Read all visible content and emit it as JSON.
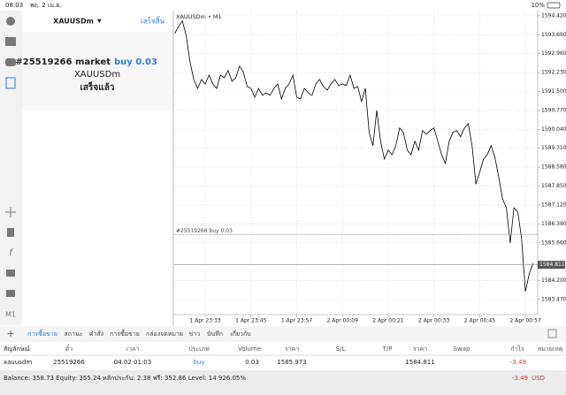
{
  "status_bar": {
    "time": "08:03",
    "date": "พฤ. 2 เม.ย.",
    "battery": "10%"
  },
  "order_panel": {
    "symbol": "XAUUSDm",
    "done_button": "เสร็จสิ้น",
    "order_title": "#25519266 market",
    "order_detail": "buy 0.03",
    "order_symbol": "XAUUSDm",
    "status": "เสร็จแล้ว"
  },
  "sidebar": {
    "timeframe": "M1"
  },
  "chart_data": {
    "type": "line",
    "title": "XAUUSDm • M1",
    "color": "#000000",
    "grid": true,
    "categories": [
      null,
      null,
      null,
      null,
      null,
      null,
      null,
      null,
      "1 Apr 23:33",
      null,
      null,
      null,
      null,
      null,
      null,
      null,
      null,
      null,
      null,
      null,
      "1 Apr 23:45",
      null,
      null,
      null,
      null,
      null,
      null,
      null,
      null,
      null,
      null,
      null,
      "1 Apr 23:57",
      null,
      null,
      null,
      null,
      null,
      null,
      null,
      null,
      null,
      null,
      null,
      "2 Apr 00:09",
      null,
      null,
      null,
      null,
      null,
      null,
      null,
      null,
      null,
      null,
      null,
      "2 Apr 00:21",
      null,
      null,
      null,
      null,
      null,
      null,
      null,
      null,
      null,
      null,
      null,
      "2 Apr 00:33",
      null,
      null,
      null,
      null,
      null,
      null,
      null,
      null,
      null,
      null,
      null,
      "2 Apr 00:45",
      null,
      null,
      null,
      null,
      null,
      null,
      null,
      null,
      null,
      null,
      null,
      "2 Apr 00:57",
      null,
      null
    ],
    "values": [
      1593.74,
      1594.01,
      1594.22,
      1593.67,
      1592.65,
      1591.96,
      1591.62,
      1591.96,
      1591.79,
      1592.13,
      1591.79,
      1591.62,
      1592.13,
      1592.03,
      1592.31,
      1591.9,
      1592.03,
      1592.48,
      1592.24,
      1591.69,
      1591.62,
      1591.28,
      1591.62,
      1591.35,
      1591.45,
      1591.35,
      1591.62,
      1591.79,
      1591.21,
      1591.62,
      1591.79,
      1592.13,
      1591.28,
      1591.21,
      1591.62,
      1591.45,
      1591.35,
      1591.79,
      1591.96,
      1591.69,
      1591.55,
      1591.79,
      1591.96,
      1591.73,
      1591.79,
      1591.73,
      1592.13,
      1591.62,
      1591.69,
      1591.11,
      1591.62,
      1589.92,
      1589.41,
      1590.77,
      1589.58,
      1588.89,
      1589.24,
      1589.06,
      1589.41,
      1590.09,
      1589.92,
      1589.24,
      1589.06,
      1589.58,
      1589.24,
      1589.99,
      1589.85,
      1589.99,
      1590.09,
      1589.58,
      1589.06,
      1588.72,
      1589.58,
      1589.92,
      1589.99,
      1589.75,
      1590.09,
      1590.26,
      1589.41,
      1587.93,
      1588.38,
      1588.89,
      1589.06,
      1589.41,
      1588.96,
      1588.21,
      1587.35,
      1587.01,
      1585.65,
      1587.01,
      1586.85,
      1585.82,
      1583.78,
      1584.46,
      1584.87
    ],
    "ylim": [
      1582.89,
      1594.62
    ],
    "yticks": [
      {
        "value": 1594.42,
        "label": "1594.420"
      },
      {
        "value": 1593.69,
        "label": "1593.690"
      },
      {
        "value": 1592.96,
        "label": "1592.960"
      },
      {
        "value": 1592.23,
        "label": "1592.230"
      },
      {
        "value": 1591.5,
        "label": "1591.500"
      },
      {
        "value": 1590.77,
        "label": "1590.770"
      },
      {
        "value": 1590.04,
        "label": "1590.040"
      },
      {
        "value": 1589.31,
        "label": "1589.310"
      },
      {
        "value": 1588.58,
        "label": "1588.580"
      },
      {
        "value": 1587.85,
        "label": "1587.850"
      },
      {
        "value": 1587.12,
        "label": "1587.120"
      },
      {
        "value": 1586.39,
        "label": "1586.390"
      },
      {
        "value": 1585.66,
        "label": "1585.660"
      },
      {
        "value": 1584.2,
        "label": "1584.200"
      },
      {
        "value": 1583.47,
        "label": "1583.470"
      }
    ],
    "order_line": {
      "value": 1585.973,
      "label": "#25519266 buy 0.03"
    },
    "bid_line": {
      "value": 1584.811,
      "label": "1584.811"
    }
  },
  "tabs": [
    "การซื้อขาย",
    "สถานะ",
    "คำสั่ง",
    "การซื้อขาย",
    "กล่องจดหมาย",
    "ข่าว",
    "บันทึก",
    "เกี่ยวกับ"
  ],
  "table": {
    "columns": [
      "สัญลักษณ์",
      "ตั๋ว",
      "เวลา",
      "ประเภท",
      "Volume",
      "ราคา",
      "S/L",
      "T/P",
      "ราคา",
      "Swap",
      "กำไร",
      "หมายเหตุ"
    ],
    "row": {
      "symbol": "xauusdm",
      "ticket": "25519266",
      "time": "04.02 01:03",
      "type": "buy",
      "volume": "0.03",
      "open_price": "1585.973",
      "current_price": "1584.811",
      "profit": "-3.49"
    }
  },
  "footer": {
    "summary": "Balance: 358.73 Equity: 355.24 หลักประกัน: 2.38 ฟรี: 352.86 Level: 14 926.05%",
    "profit": "-3.49",
    "currency": "USD"
  }
}
